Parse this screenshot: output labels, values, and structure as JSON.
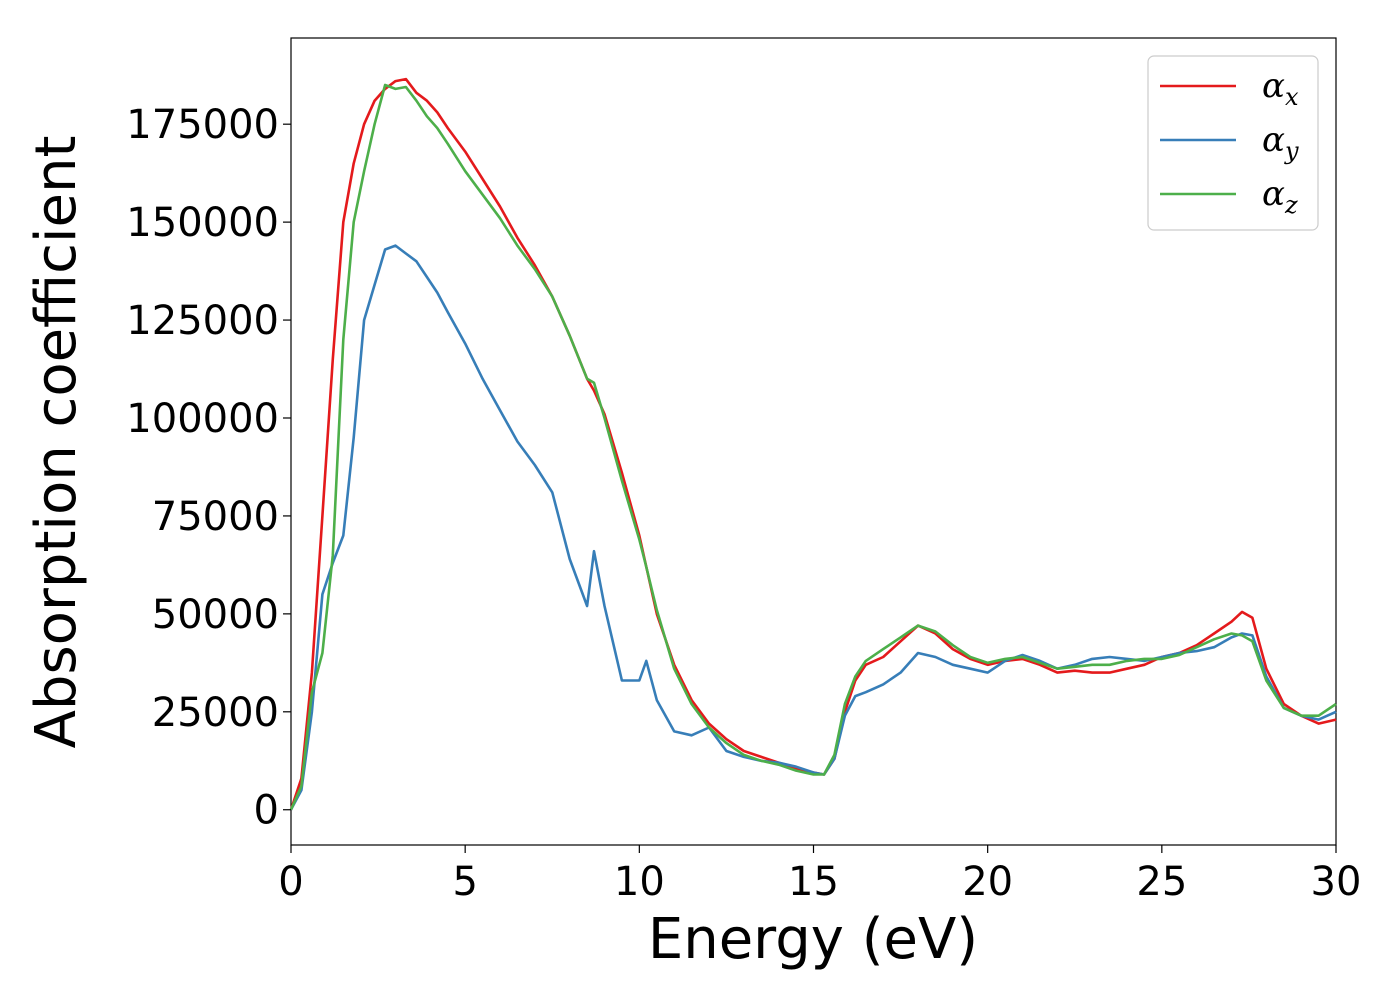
{
  "chart_data": {
    "type": "line",
    "xlabel": "Energy (eV)",
    "ylabel": "Absorption coefficient",
    "xlim": [
      0,
      30
    ],
    "ylim": [
      -9000,
      197000
    ],
    "xticks": [
      "0",
      "5",
      "10",
      "15",
      "20",
      "25",
      "30"
    ],
    "yticks": [
      "0",
      "25000",
      "50000",
      "75000",
      "100000",
      "125000",
      "150000",
      "175000"
    ],
    "grid": false,
    "legend_position": "top-right",
    "x": [
      0,
      0.3,
      0.6,
      0.9,
      1.2,
      1.5,
      1.8,
      2.1,
      2.4,
      2.7,
      3.0,
      3.3,
      3.6,
      3.9,
      4.2,
      4.5,
      5.0,
      5.5,
      6.0,
      6.5,
      7.0,
      7.5,
      8.0,
      8.5,
      8.7,
      9.0,
      9.5,
      10.0,
      10.2,
      10.5,
      11.0,
      11.5,
      12.0,
      12.5,
      13.0,
      13.5,
      14.0,
      14.5,
      15.0,
      15.3,
      15.6,
      15.9,
      16.2,
      16.5,
      17.0,
      17.5,
      18.0,
      18.5,
      19.0,
      19.5,
      20.0,
      20.5,
      21.0,
      21.5,
      22.0,
      22.5,
      23.0,
      23.5,
      24.0,
      24.5,
      25.0,
      25.5,
      26.0,
      26.5,
      27.0,
      27.3,
      27.6,
      28.0,
      28.5,
      29.0,
      29.5,
      30.0
    ],
    "series": [
      {
        "name": "α_x",
        "label_main": "α",
        "label_sub": "x",
        "color": "#e41a1c",
        "values": [
          0,
          8000,
          35000,
          75000,
          115000,
          150000,
          165000,
          175000,
          181000,
          184000,
          186000,
          186500,
          183000,
          181000,
          178000,
          174000,
          168000,
          161000,
          154000,
          146000,
          139000,
          131000,
          121000,
          110000,
          107000,
          101000,
          86000,
          70000,
          62000,
          50000,
          37000,
          28000,
          22000,
          18000,
          15000,
          13500,
          12000,
          10500,
          9500,
          9000,
          13000,
          25000,
          33000,
          37000,
          39000,
          43000,
          47000,
          45000,
          41000,
          38500,
          37000,
          38000,
          38500,
          37000,
          35000,
          35500,
          35000,
          35000,
          36000,
          37000,
          39000,
          40000,
          42000,
          45000,
          48000,
          50500,
          49000,
          36000,
          27000,
          24000,
          22000,
          23000
        ]
      },
      {
        "name": "α_y",
        "label_main": "α",
        "label_sub": "y",
        "color": "#377eb8",
        "values": [
          0,
          5000,
          25000,
          55000,
          63000,
          70000,
          95000,
          125000,
          134000,
          143000,
          144000,
          142000,
          140000,
          136000,
          132000,
          127000,
          119000,
          110000,
          102000,
          94000,
          88000,
          81000,
          64000,
          52000,
          66000,
          52000,
          33000,
          33000,
          38000,
          28000,
          20000,
          19000,
          21000,
          15000,
          13500,
          12500,
          12000,
          11000,
          9500,
          9000,
          13000,
          24000,
          29000,
          30000,
          32000,
          35000,
          40000,
          39000,
          37000,
          36000,
          35000,
          38000,
          39500,
          38000,
          36000,
          37000,
          38500,
          39000,
          38500,
          38000,
          39000,
          40000,
          40500,
          41500,
          44000,
          45000,
          44500,
          34000,
          26000,
          24000,
          23000,
          25000
        ]
      },
      {
        "name": "α_z",
        "label_main": "α",
        "label_sub": "z",
        "color": "#4daf4a",
        "values": [
          0,
          6000,
          30000,
          40000,
          65000,
          120000,
          150000,
          163000,
          175000,
          185000,
          184000,
          184500,
          181000,
          177000,
          174000,
          170000,
          163000,
          157000,
          151000,
          144000,
          138000,
          131000,
          121000,
          110000,
          109000,
          100000,
          84000,
          69000,
          62000,
          51000,
          36000,
          27000,
          21000,
          17000,
          14000,
          12500,
          11500,
          10000,
          9000,
          9000,
          14000,
          27000,
          34000,
          38000,
          41000,
          44000,
          47000,
          45500,
          42000,
          39000,
          37500,
          38500,
          39000,
          37500,
          36000,
          36500,
          37000,
          37000,
          38000,
          38500,
          38500,
          39500,
          41500,
          43500,
          45000,
          44500,
          43000,
          33000,
          26000,
          24000,
          24000,
          27000
        ]
      }
    ]
  }
}
